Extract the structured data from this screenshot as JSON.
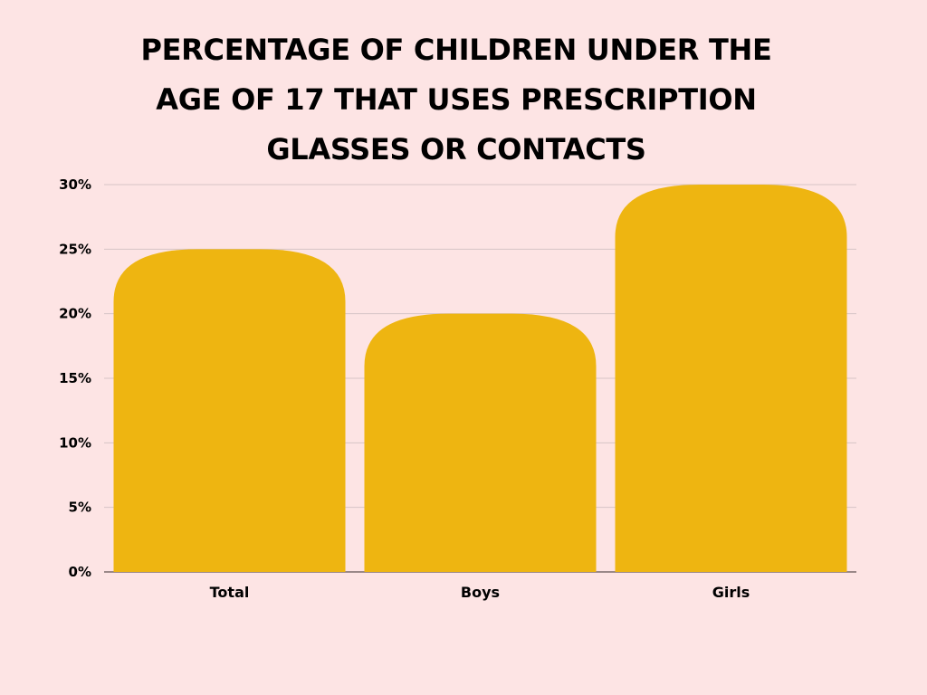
{
  "chart_data": {
    "type": "bar",
    "title": "PERCENTAGE OF CHILDREN UNDER THE AGE OF 17 THAT USES PRESCRIPTION GLASSES OR CONTACTS",
    "title_lines": [
      "PERCENTAGE OF CHILDREN UNDER THE",
      "AGE OF 17 THAT USES PRESCRIPTION",
      "GLASSES OR CONTACTS"
    ],
    "categories": [
      "Total",
      "Boys",
      "Girls"
    ],
    "values": [
      25,
      20,
      30
    ],
    "unit": "%",
    "xlabel": "",
    "ylabel": "",
    "ylim": [
      0,
      30
    ],
    "yticks": [
      "0%",
      "5%",
      "10%",
      "15%",
      "20%",
      "25%",
      "30%"
    ],
    "ytick_values": [
      0,
      5,
      10,
      15,
      20,
      25,
      30
    ],
    "grid": true,
    "legend": "none"
  },
  "colors": {
    "background": "#fde4e4",
    "bar": "#eeb511",
    "grid": "#d6c4c6",
    "axis": "#7a6a6a",
    "text": "#000000"
  }
}
